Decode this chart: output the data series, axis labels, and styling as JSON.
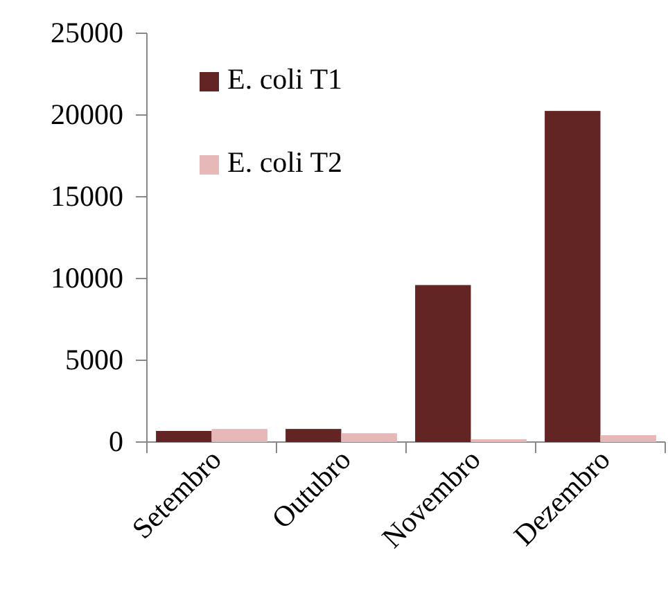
{
  "chart_data": {
    "type": "bar",
    "categories": [
      "Setembro",
      "Outubro",
      "Novembro",
      "Dezembro"
    ],
    "series": [
      {
        "name": "E. coli T1",
        "color": "#632523",
        "values": [
          680,
          800,
          9600,
          20250
        ]
      },
      {
        "name": "E. coli T2",
        "color": "#e6b9b8",
        "values": [
          800,
          540,
          170,
          420
        ]
      }
    ],
    "ylim": [
      0,
      25000
    ],
    "yticks": [
      0,
      5000,
      10000,
      15000,
      20000,
      25000
    ],
    "grid": false,
    "legend": "top left"
  }
}
